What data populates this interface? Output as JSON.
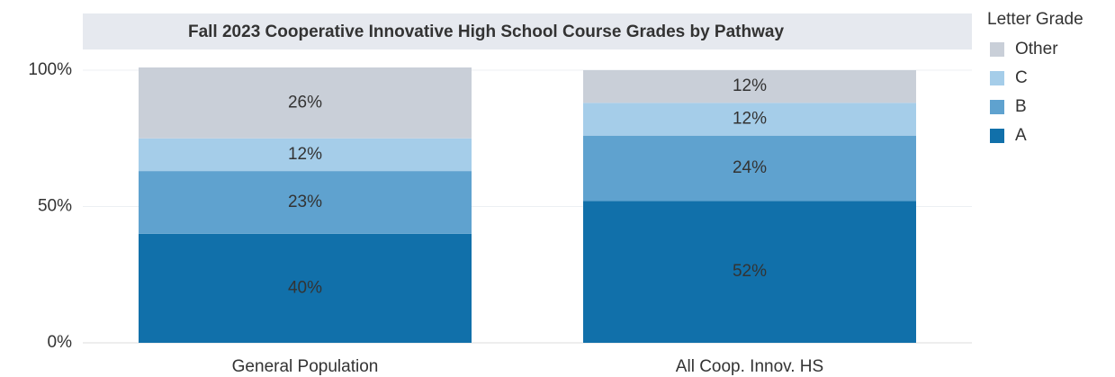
{
  "chart_data": {
    "type": "stacked_bar",
    "title": "Fall 2023 Cooperative Innovative High School Course Grades by Pathway",
    "categories": [
      "General Population",
      "All Coop. Innov. HS"
    ],
    "series": [
      {
        "name": "A",
        "color": "#1170aa",
        "values": [
          40,
          52
        ],
        "value_labels": [
          "40%",
          "52%"
        ]
      },
      {
        "name": "B",
        "color": "#5fa2cf",
        "values": [
          23,
          24
        ],
        "value_labels": [
          "23%",
          "24%"
        ]
      },
      {
        "name": "C",
        "color": "#a5cde9",
        "values": [
          12,
          12
        ],
        "value_labels": [
          "12%",
          "12%"
        ]
      },
      {
        "name": "Other",
        "color": "#c9cfd8",
        "values": [
          26,
          12
        ],
        "value_labels": [
          "26%",
          "12%"
        ]
      }
    ],
    "legend_title": "Letter Grade",
    "legend_position": "right",
    "ylim": [
      0,
      100
    ],
    "yticks": [
      {
        "value": 0,
        "label": "0%"
      },
      {
        "value": 50,
        "label": "50%"
      },
      {
        "value": 100,
        "label": "100%"
      }
    ],
    "grid": true
  }
}
